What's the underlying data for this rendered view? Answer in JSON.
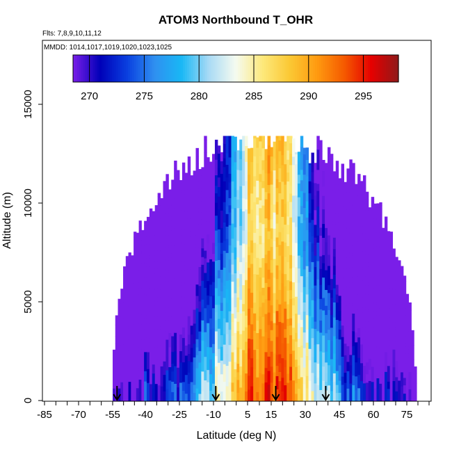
{
  "chart_data": {
    "type": "heatmap",
    "title": "ATOM3 Northbound T_OHR",
    "subtitle_flights": "Flts: 7,8,9,10,11,12",
    "subtitle_dates": "MMDD: 1014,1017,1019,1020,1023,1025",
    "xlabel": "Latitude (deg N)",
    "ylabel": "Altitude (m)",
    "xlim": [
      -85,
      85
    ],
    "ylim": [
      0,
      17000
    ],
    "x_tick_labels": [
      "-85",
      "-70",
      "-55",
      "-40",
      "-25",
      "-10",
      "5",
      "15",
      "30",
      "45",
      "60",
      "75"
    ],
    "x_tick_values": [
      -85,
      -70,
      -55,
      -40,
      -25,
      -10,
      5,
      15,
      30,
      45,
      60,
      75
    ],
    "y_tick_labels": [
      "0",
      "5000",
      "10000",
      "15000"
    ],
    "y_tick_values": [
      0,
      5000,
      10000,
      15000
    ],
    "colorbar": {
      "min": 268.5,
      "max": 298.2,
      "tick_labels": [
        "270",
        "275",
        "280",
        "285",
        "290",
        "295"
      ],
      "tick_values": [
        270,
        275,
        280,
        285,
        290,
        295
      ],
      "colors": [
        "#7a1ee8",
        "#0000b8",
        "#0a40e0",
        "#2f8ff0",
        "#19b8f5",
        "#a8daf5",
        "#f5fbf0",
        "#fde87a",
        "#fbc834",
        "#ff9a10",
        "#f55a00",
        "#e60000",
        "#8e1a1a"
      ]
    },
    "flight_markers_lat": [
      -53,
      -9,
      17,
      39
    ],
    "coverage": {
      "lat_range": [
        -55,
        79
      ],
      "alt_max": 13400
    },
    "description": "Latitude-altitude curtain of temperature (K): coldest (~270-275 K) at high latitudes and altitude, warmest (~290-297 K) in the tropics between about -10 and 40 deg N."
  }
}
